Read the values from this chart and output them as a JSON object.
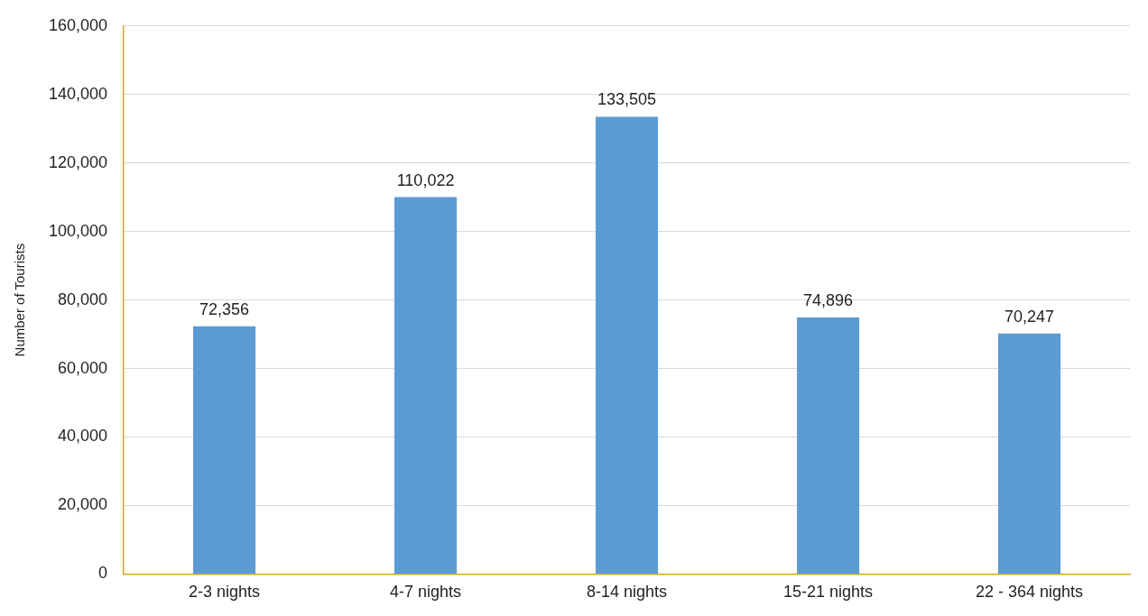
{
  "chart_data": {
    "type": "bar",
    "ylabel": "Number of Tourists",
    "categories": [
      "2-3 nights",
      "4-7 nights",
      "8-14 nights",
      "15-21 nights",
      "22 - 364 nights"
    ],
    "values": [
      72356,
      110022,
      133505,
      74896,
      70247
    ],
    "color": "#5b9bd5",
    "ylim": [
      0,
      160000
    ],
    "yticks": [
      {
        "value": 0,
        "label": "0"
      },
      {
        "value": 20000,
        "label": "20,000"
      },
      {
        "value": 40000,
        "label": "40,000"
      },
      {
        "value": 60000,
        "label": "60,000"
      },
      {
        "value": 80000,
        "label": "80,000"
      },
      {
        "value": 100000,
        "label": "100,000"
      },
      {
        "value": 120000,
        "label": "120,000"
      },
      {
        "value": 140000,
        "label": "140,000"
      },
      {
        "value": 160000,
        "label": "160,000"
      }
    ],
    "value_labels": [
      "72,356",
      "110,022",
      "133,505",
      "74,896",
      "70,247"
    ],
    "grid": "y",
    "legend": false
  }
}
